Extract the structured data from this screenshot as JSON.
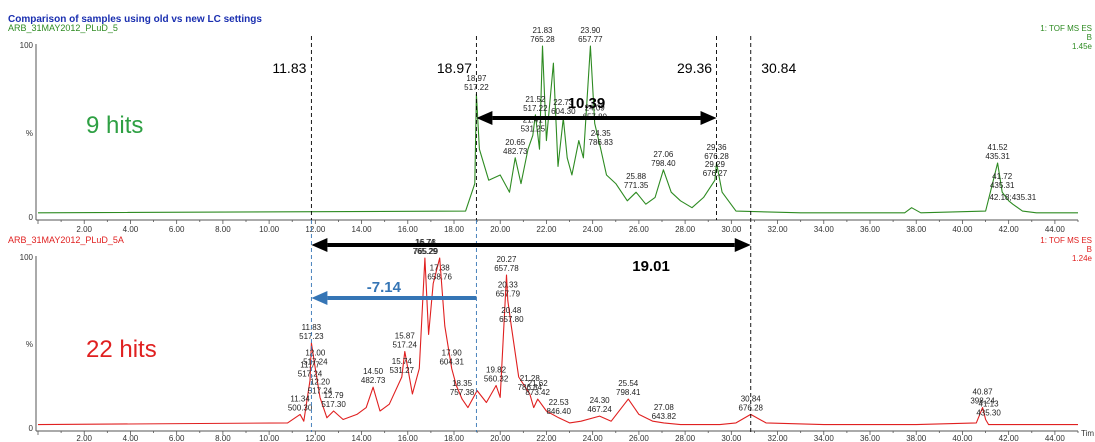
{
  "chart_data": {
    "type": "line",
    "title": "Comparison of samples using old vs new LC settings",
    "panels": [
      {
        "name": "ARB_31MAY2012_PLuD_5",
        "corner_label": [
          "1: TOF MS ES",
          "B",
          "1.45e"
        ],
        "color": "#2e8b22",
        "xlim": [
          0,
          45
        ],
        "ylim": [
          0,
          100
        ],
        "xticks": [
          "2.00",
          "4.00",
          "6.00",
          "8.00",
          "10.00",
          "12.00",
          "14.00",
          "16.00",
          "18.00",
          "20.00",
          "22.00",
          "24.00",
          "26.00",
          "28.00",
          "30.00",
          "32.00",
          "34.00",
          "36.00",
          "38.00",
          "40.00",
          "42.00",
          "44.00"
        ],
        "y_tick_labels": [
          "100",
          "%",
          "0"
        ],
        "hits_label": "9 hits",
        "hits_color": "#2ea043",
        "x": [
          0,
          18.5,
          18.9,
          18.97,
          19.1,
          19.5,
          20,
          20.4,
          20.65,
          20.9,
          21.2,
          21.41,
          21.52,
          21.7,
          21.83,
          22.0,
          22.3,
          22.5,
          22.73,
          22.9,
          23.1,
          23.4,
          23.6,
          23.9,
          24.09,
          24.35,
          24.6,
          25.0,
          25.5,
          25.88,
          26.3,
          26.7,
          27.06,
          27.4,
          27.8,
          28.3,
          28.8,
          29.29,
          29.36,
          29.6,
          30.2,
          33,
          37.5,
          37.8,
          38.2,
          41,
          41.3,
          41.52,
          41.72,
          42.0,
          42.18,
          42.6,
          43.2,
          45
        ],
        "y": [
          3,
          4,
          20,
          72,
          40,
          22,
          25,
          15,
          35,
          20,
          40,
          48,
          60,
          40,
          100,
          45,
          90,
          30,
          58,
          35,
          25,
          45,
          35,
          100,
          55,
          40,
          25,
          20,
          10,
          15,
          8,
          12,
          28,
          15,
          10,
          6,
          12,
          22,
          32,
          15,
          4,
          3,
          3,
          6,
          3,
          4,
          20,
          32,
          15,
          10,
          8,
          4,
          3,
          3
        ],
        "peak_labels": [
          {
            "x": 18.97,
            "y": 72,
            "lines": [
              "18.97",
              "517.22"
            ]
          },
          {
            "x": 21.83,
            "y": 100,
            "lines": [
              "21.83",
              "765.28"
            ]
          },
          {
            "x": 23.9,
            "y": 100,
            "lines": [
              "23.90",
              "657.77"
            ]
          },
          {
            "x": 21.52,
            "y": 60,
            "lines": [
              "21.52",
              "517.22"
            ]
          },
          {
            "x": 22.73,
            "y": 58,
            "lines": [
              "22.73",
              "604.30"
            ]
          },
          {
            "x": 21.41,
            "y": 48,
            "lines": [
              "21.41",
              "531.25"
            ]
          },
          {
            "x": 24.09,
            "y": 55,
            "lines": [
              "24.09",
              "657.80"
            ]
          },
          {
            "x": 20.65,
            "y": 35,
            "lines": [
              "20.65",
              "482.73"
            ]
          },
          {
            "x": 24.35,
            "y": 40,
            "lines": [
              "24.35",
              "786.83"
            ]
          },
          {
            "x": 27.06,
            "y": 28,
            "lines": [
              "27.06",
              "798.40"
            ]
          },
          {
            "x": 29.36,
            "y": 32,
            "lines": [
              "29.36",
              "676.28"
            ]
          },
          {
            "x": 25.88,
            "y": 15,
            "lines": [
              "25.88",
              "771.35"
            ]
          },
          {
            "x": 29.29,
            "y": 22,
            "lines": [
              "29.29",
              "676.27"
            ]
          },
          {
            "x": 41.52,
            "y": 32,
            "lines": [
              "41.52",
              "435.31"
            ]
          },
          {
            "x": 41.72,
            "y": 15,
            "lines": [
              "41.72",
              "435.31"
            ]
          },
          {
            "x": 42.18,
            "y": 8,
            "lines": [
              "42.18;435.31"
            ]
          }
        ]
      },
      {
        "name": "ARB_31MAY2012_PLuD_5A",
        "corner_label": [
          "1: TOF MS ES",
          "B",
          "1.24e"
        ],
        "color": "#e02020",
        "xlim": [
          0,
          45
        ],
        "ylim": [
          0,
          100
        ],
        "xticks": [
          "2.00",
          "4.00",
          "6.00",
          "8.00",
          "10.00",
          "12.00",
          "14.00",
          "16.00",
          "18.00",
          "20.00",
          "22.00",
          "24.00",
          "26.00",
          "28.00",
          "30.00",
          "32.00",
          "34.00",
          "36.00",
          "38.00",
          "40.00",
          "42.00",
          "44.00"
        ],
        "y_tick_labels": [
          "100",
          "%",
          "0"
        ],
        "hits_label": "22 hits",
        "hits_color": "#e02020",
        "x": [
          0,
          10.8,
          11.34,
          11.5,
          11.77,
          11.83,
          12.0,
          12.2,
          12.5,
          12.79,
          13.2,
          13.8,
          14.2,
          14.5,
          14.8,
          15.2,
          15.74,
          15.87,
          16.2,
          16.5,
          16.74,
          16.9,
          17.1,
          17.38,
          17.6,
          17.9,
          18.1,
          18.35,
          18.6,
          19.0,
          19.4,
          19.82,
          20.0,
          20.27,
          20.33,
          20.48,
          20.8,
          21.28,
          21.45,
          21.62,
          22.0,
          22.53,
          23.0,
          23.5,
          24.3,
          24.8,
          25.54,
          26.0,
          26.6,
          27.08,
          27.8,
          29.5,
          30.2,
          30.84,
          31.5,
          34,
          38,
          40.6,
          40.87,
          41.0,
          41.13,
          41.5,
          45
        ],
        "y": [
          2,
          3,
          8,
          4,
          28,
          50,
          35,
          18,
          6,
          10,
          5,
          8,
          12,
          24,
          10,
          14,
          30,
          45,
          20,
          35,
          100,
          55,
          85,
          100,
          60,
          35,
          25,
          17,
          12,
          22,
          15,
          25,
          18,
          90,
          75,
          60,
          30,
          20,
          12,
          17,
          10,
          6,
          3,
          4,
          7,
          4,
          17,
          8,
          4,
          3,
          2,
          2,
          3,
          8,
          3,
          2,
          2,
          3,
          12,
          5,
          2,
          2,
          2
        ],
        "peak_labels": [
          {
            "x": 16.74,
            "y": 100,
            "lines": [
              "16.74",
              "765.29"
            ]
          },
          {
            "x": 16.78,
            "y": 100,
            "lines": [
              "16.78",
              "765.29"
            ]
          },
          {
            "x": 20.27,
            "y": 90,
            "lines": [
              "20.27",
              "657.78"
            ]
          },
          {
            "x": 17.38,
            "y": 85,
            "lines": [
              "17.38",
              "658.76"
            ]
          },
          {
            "x": 20.33,
            "y": 75,
            "lines": [
              "20.33",
              "657.79"
            ]
          },
          {
            "x": 20.48,
            "y": 60,
            "lines": [
              "20.48",
              "657.80"
            ]
          },
          {
            "x": 11.83,
            "y": 50,
            "lines": [
              "11.83",
              "517.23"
            ]
          },
          {
            "x": 15.87,
            "y": 45,
            "lines": [
              "15.87",
              "517.24"
            ]
          },
          {
            "x": 17.9,
            "y": 35,
            "lines": [
              "17.90",
              "604.31"
            ]
          },
          {
            "x": 12.0,
            "y": 35,
            "lines": [
              "12.00",
              "517.24"
            ]
          },
          {
            "x": 11.77,
            "y": 28,
            "lines": [
              "11.77",
              "517.24"
            ]
          },
          {
            "x": 15.74,
            "y": 30,
            "lines": [
              "15.74",
              "531.27"
            ]
          },
          {
            "x": 19.82,
            "y": 25,
            "lines": [
              "19.82",
              "560.32"
            ]
          },
          {
            "x": 14.5,
            "y": 24,
            "lines": [
              "14.50",
              "482.73"
            ]
          },
          {
            "x": 12.2,
            "y": 18,
            "lines": [
              "12.20",
              "517.24"
            ]
          },
          {
            "x": 21.28,
            "y": 20,
            "lines": [
              "21.28",
              "786.84"
            ]
          },
          {
            "x": 18.35,
            "y": 17,
            "lines": [
              "18.35",
              "757.38"
            ]
          },
          {
            "x": 21.62,
            "y": 17,
            "lines": [
              "21.62",
              "873.42"
            ]
          },
          {
            "x": 25.54,
            "y": 17,
            "lines": [
              "25.54",
              "798.41"
            ]
          },
          {
            "x": 12.79,
            "y": 10,
            "lines": [
              "12.79",
              "517.30"
            ]
          },
          {
            "x": 11.34,
            "y": 8,
            "lines": [
              "11.34",
              "500.30"
            ]
          },
          {
            "x": 22.53,
            "y": 6,
            "lines": [
              "22.53",
              "846.40"
            ]
          },
          {
            "x": 24.3,
            "y": 7,
            "lines": [
              "24.30",
              "467.24"
            ]
          },
          {
            "x": 27.08,
            "y": 3,
            "lines": [
              "27.08",
              "643.82"
            ]
          },
          {
            "x": 30.84,
            "y": 8,
            "lines": [
              "30.84",
              "676.28"
            ]
          },
          {
            "x": 40.87,
            "y": 12,
            "lines": [
              "40.87",
              "398.24"
            ]
          },
          {
            "x": 41.13,
            "y": 5,
            "lines": [
              "41.13",
              "435.30"
            ]
          }
        ]
      }
    ],
    "annotations": {
      "window_labels": [
        {
          "x": 11.83,
          "text": "11.83"
        },
        {
          "x": 18.97,
          "text": "18.97"
        },
        {
          "x": 29.36,
          "text": "29.36"
        },
        {
          "x": 30.84,
          "text": "30.84"
        }
      ],
      "arrows": [
        {
          "from": 18.97,
          "to": 29.36,
          "label": "10.39",
          "color": "#000000"
        },
        {
          "from": 11.83,
          "to": 30.84,
          "label": "19.01",
          "color": "#000000"
        },
        {
          "from": 18.97,
          "to": 11.83,
          "label": "-7.14",
          "color": "#3575b5"
        }
      ]
    },
    "x_axis_end_label": "Tim"
  }
}
